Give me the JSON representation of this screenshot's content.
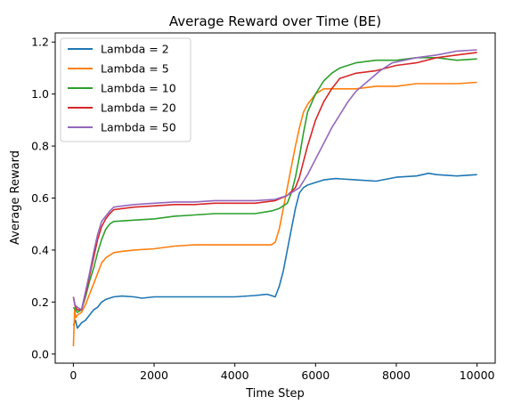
{
  "chart_data": {
    "type": "line",
    "title": "Average Reward over Time (BE)",
    "xlabel": "Time Step",
    "ylabel": "Average Reward",
    "xlim": [
      -450,
      10450
    ],
    "ylim": [
      -0.035,
      1.235
    ],
    "xticks": [
      0,
      2000,
      4000,
      6000,
      8000,
      10000
    ],
    "yticks": [
      0.0,
      0.2,
      0.4,
      0.6,
      0.8,
      1.0,
      1.2
    ],
    "grid": false,
    "legend_position": "upper-left",
    "series": [
      {
        "name": "Lambda = 2",
        "color": "#1f77b4",
        "points": [
          [
            0,
            0.11
          ],
          [
            50,
            0.13
          ],
          [
            100,
            0.1
          ],
          [
            200,
            0.12
          ],
          [
            300,
            0.13
          ],
          [
            400,
            0.15
          ],
          [
            500,
            0.17
          ],
          [
            600,
            0.18
          ],
          [
            700,
            0.2
          ],
          [
            800,
            0.21
          ],
          [
            1000,
            0.22
          ],
          [
            1200,
            0.223
          ],
          [
            1500,
            0.22
          ],
          [
            1700,
            0.215
          ],
          [
            2000,
            0.22
          ],
          [
            2500,
            0.22
          ],
          [
            3000,
            0.22
          ],
          [
            3500,
            0.22
          ],
          [
            4000,
            0.22
          ],
          [
            4500,
            0.225
          ],
          [
            4800,
            0.23
          ],
          [
            4900,
            0.225
          ],
          [
            5000,
            0.22
          ],
          [
            5100,
            0.26
          ],
          [
            5200,
            0.32
          ],
          [
            5300,
            0.4
          ],
          [
            5400,
            0.48
          ],
          [
            5500,
            0.56
          ],
          [
            5600,
            0.62
          ],
          [
            5700,
            0.64
          ],
          [
            5800,
            0.65
          ],
          [
            6000,
            0.66
          ],
          [
            6200,
            0.67
          ],
          [
            6500,
            0.675
          ],
          [
            7000,
            0.67
          ],
          [
            7500,
            0.665
          ],
          [
            8000,
            0.68
          ],
          [
            8500,
            0.685
          ],
          [
            8800,
            0.695
          ],
          [
            9000,
            0.69
          ],
          [
            9500,
            0.685
          ],
          [
            10000,
            0.69
          ]
        ]
      },
      {
        "name": "Lambda = 5",
        "color": "#ff7f0e",
        "points": [
          [
            0,
            0.03
          ],
          [
            30,
            0.17
          ],
          [
            60,
            0.14
          ],
          [
            100,
            0.15
          ],
          [
            200,
            0.16
          ],
          [
            300,
            0.19
          ],
          [
            400,
            0.23
          ],
          [
            500,
            0.27
          ],
          [
            600,
            0.31
          ],
          [
            700,
            0.35
          ],
          [
            800,
            0.37
          ],
          [
            1000,
            0.39
          ],
          [
            1200,
            0.395
          ],
          [
            1500,
            0.4
          ],
          [
            2000,
            0.405
          ],
          [
            2500,
            0.415
          ],
          [
            3000,
            0.42
          ],
          [
            3500,
            0.42
          ],
          [
            4000,
            0.42
          ],
          [
            4500,
            0.42
          ],
          [
            4900,
            0.42
          ],
          [
            5000,
            0.43
          ],
          [
            5100,
            0.48
          ],
          [
            5200,
            0.56
          ],
          [
            5300,
            0.64
          ],
          [
            5400,
            0.72
          ],
          [
            5500,
            0.8
          ],
          [
            5600,
            0.87
          ],
          [
            5700,
            0.93
          ],
          [
            5800,
            0.96
          ],
          [
            6000,
            1.0
          ],
          [
            6200,
            1.02
          ],
          [
            6500,
            1.02
          ],
          [
            7000,
            1.02
          ],
          [
            7500,
            1.03
          ],
          [
            8000,
            1.03
          ],
          [
            8500,
            1.04
          ],
          [
            9000,
            1.04
          ],
          [
            9500,
            1.04
          ],
          [
            10000,
            1.045
          ]
        ]
      },
      {
        "name": "Lambda = 10",
        "color": "#2ca02c",
        "points": [
          [
            0,
            0.18
          ],
          [
            50,
            0.17
          ],
          [
            100,
            0.16
          ],
          [
            200,
            0.17
          ],
          [
            300,
            0.22
          ],
          [
            400,
            0.28
          ],
          [
            500,
            0.33
          ],
          [
            600,
            0.39
          ],
          [
            700,
            0.44
          ],
          [
            800,
            0.48
          ],
          [
            900,
            0.5
          ],
          [
            1000,
            0.51
          ],
          [
            1500,
            0.515
          ],
          [
            2000,
            0.52
          ],
          [
            2500,
            0.53
          ],
          [
            3000,
            0.535
          ],
          [
            3500,
            0.54
          ],
          [
            4000,
            0.54
          ],
          [
            4500,
            0.54
          ],
          [
            4900,
            0.55
          ],
          [
            5100,
            0.56
          ],
          [
            5300,
            0.58
          ],
          [
            5400,
            0.62
          ],
          [
            5500,
            0.68
          ],
          [
            5600,
            0.76
          ],
          [
            5700,
            0.85
          ],
          [
            5800,
            0.93
          ],
          [
            6000,
            1.0
          ],
          [
            6200,
            1.05
          ],
          [
            6400,
            1.08
          ],
          [
            6600,
            1.1
          ],
          [
            7000,
            1.12
          ],
          [
            7500,
            1.13
          ],
          [
            8000,
            1.13
          ],
          [
            8500,
            1.14
          ],
          [
            9000,
            1.14
          ],
          [
            9500,
            1.13
          ],
          [
            10000,
            1.135
          ]
        ]
      },
      {
        "name": "Lambda = 20",
        "color": "#d62728",
        "points": [
          [
            0,
            0.22
          ],
          [
            50,
            0.18
          ],
          [
            100,
            0.17
          ],
          [
            200,
            0.17
          ],
          [
            300,
            0.23
          ],
          [
            400,
            0.3
          ],
          [
            500,
            0.37
          ],
          [
            600,
            0.44
          ],
          [
            700,
            0.49
          ],
          [
            800,
            0.52
          ],
          [
            900,
            0.54
          ],
          [
            1000,
            0.555
          ],
          [
            1500,
            0.565
          ],
          [
            2000,
            0.57
          ],
          [
            2500,
            0.575
          ],
          [
            3000,
            0.575
          ],
          [
            3500,
            0.58
          ],
          [
            4000,
            0.58
          ],
          [
            4500,
            0.58
          ],
          [
            5000,
            0.59
          ],
          [
            5300,
            0.61
          ],
          [
            5500,
            0.64
          ],
          [
            5600,
            0.68
          ],
          [
            5700,
            0.74
          ],
          [
            5800,
            0.8
          ],
          [
            6000,
            0.9
          ],
          [
            6200,
            0.97
          ],
          [
            6400,
            1.02
          ],
          [
            6600,
            1.06
          ],
          [
            7000,
            1.08
          ],
          [
            7500,
            1.09
          ],
          [
            8000,
            1.11
          ],
          [
            8500,
            1.12
          ],
          [
            9000,
            1.14
          ],
          [
            9500,
            1.15
          ],
          [
            10000,
            1.16
          ]
        ]
      },
      {
        "name": "Lambda = 50",
        "color": "#9467bd",
        "points": [
          [
            0,
            0.22
          ],
          [
            30,
            0.19
          ],
          [
            100,
            0.18
          ],
          [
            200,
            0.17
          ],
          [
            300,
            0.24
          ],
          [
            400,
            0.31
          ],
          [
            500,
            0.39
          ],
          [
            600,
            0.46
          ],
          [
            700,
            0.51
          ],
          [
            800,
            0.53
          ],
          [
            900,
            0.55
          ],
          [
            1000,
            0.565
          ],
          [
            1500,
            0.575
          ],
          [
            2000,
            0.58
          ],
          [
            2500,
            0.585
          ],
          [
            3000,
            0.585
          ],
          [
            3500,
            0.59
          ],
          [
            4000,
            0.59
          ],
          [
            4500,
            0.59
          ],
          [
            5000,
            0.595
          ],
          [
            5300,
            0.61
          ],
          [
            5600,
            0.64
          ],
          [
            5800,
            0.69
          ],
          [
            6000,
            0.75
          ],
          [
            6200,
            0.81
          ],
          [
            6400,
            0.87
          ],
          [
            6600,
            0.92
          ],
          [
            6800,
            0.97
          ],
          [
            7000,
            1.01
          ],
          [
            7300,
            1.05
          ],
          [
            7600,
            1.09
          ],
          [
            7900,
            1.12
          ],
          [
            8200,
            1.13
          ],
          [
            8500,
            1.14
          ],
          [
            9000,
            1.15
          ],
          [
            9500,
            1.165
          ],
          [
            10000,
            1.17
          ]
        ]
      }
    ]
  }
}
